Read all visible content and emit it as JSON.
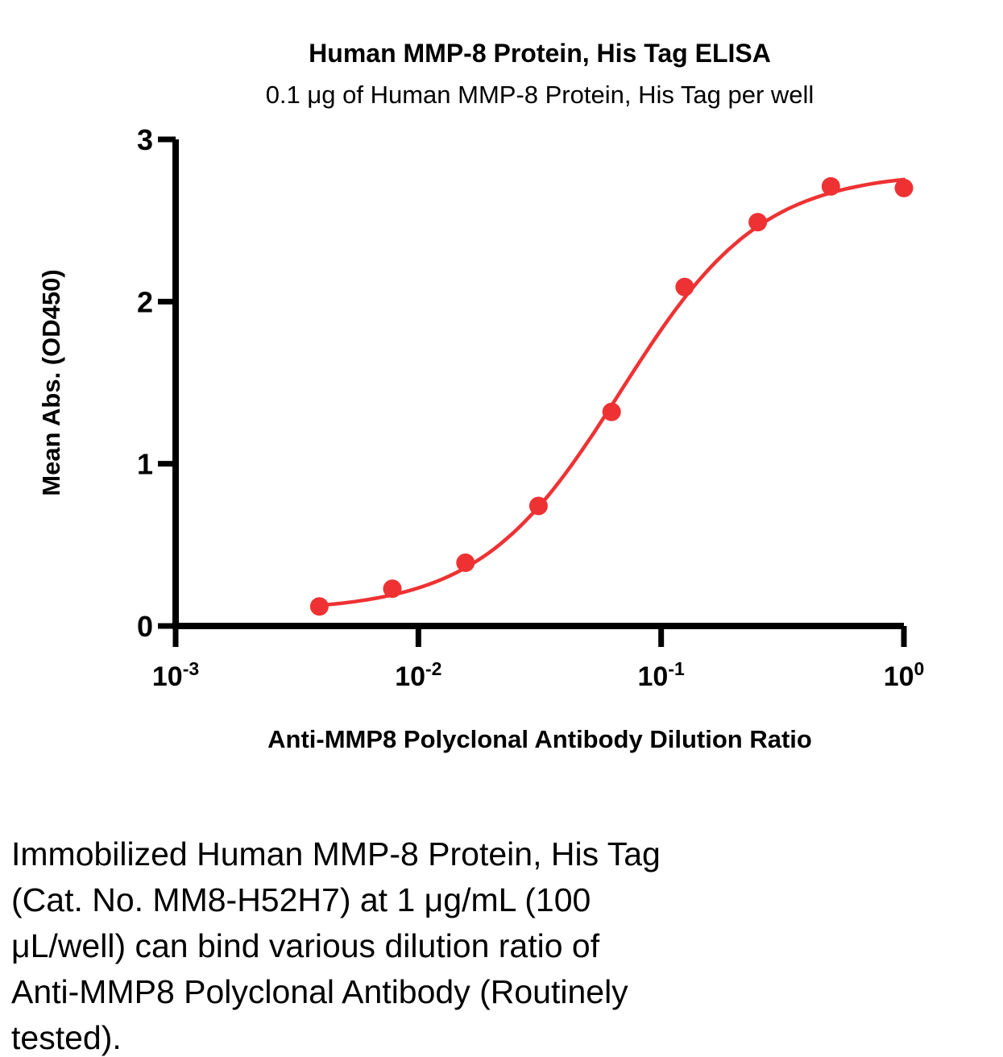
{
  "chart_data": {
    "type": "scatter",
    "title": "Human MMP-8 Protein, His Tag ELISA",
    "subtitle": "0.1 μg of Human MMP-8 Protein, His Tag per well",
    "xlabel": "Anti-MMP8 Polyclonal Antibody Dilution Ratio",
    "ylabel": "Mean Abs. (OD450)",
    "x_scale": "log10",
    "xlim": [
      0.001,
      1
    ],
    "ylim": [
      0,
      3
    ],
    "grid": false,
    "legend": "none",
    "axis_color": "#000000",
    "x_ticks": [
      {
        "base": "10",
        "exp": "-3",
        "value": 0.001
      },
      {
        "base": "10",
        "exp": "-2",
        "value": 0.01
      },
      {
        "base": "10",
        "exp": "-1",
        "value": 0.1
      },
      {
        "base": "10",
        "exp": "0",
        "value": 1
      }
    ],
    "y_ticks": [
      {
        "label": "0",
        "value": 0
      },
      {
        "label": "1",
        "value": 1
      },
      {
        "label": "2",
        "value": 2
      },
      {
        "label": "3",
        "value": 3
      }
    ],
    "series": [
      {
        "name": "Human MMP-8 Protein, His Tag",
        "color": "#ee3233",
        "marker": "circle",
        "x": [
          0.00391,
          0.00781,
          0.01563,
          0.03125,
          0.0625,
          0.125,
          0.25,
          0.5,
          1.0
        ],
        "y": [
          0.12,
          0.23,
          0.39,
          0.74,
          1.32,
          2.09,
          2.49,
          2.71,
          2.7
        ]
      }
    ],
    "fit_curve": {
      "model": "4PL",
      "bottom": 0.09,
      "top": 2.8,
      "ec50": 0.068,
      "hill": 1.5
    }
  },
  "caption": {
    "lines": [
      "Immobilized Human MMP-8 Protein, His Tag",
      "(Cat. No. MM8-H52H7) at 1 μg/mL (100",
      "μL/well) can bind various dilution ratio of",
      "Anti-MMP8 Polyclonal Antibody (Routinely",
      "tested)."
    ],
    "text": "Immobilized Human MMP-8 Protein, His Tag (Cat. No. MM8-H52H7) at 1 μg/mL (100 μL/well) can bind various dilution ratio of Anti-MMP8 Polyclonal Antibody (Routinely tested)."
  }
}
